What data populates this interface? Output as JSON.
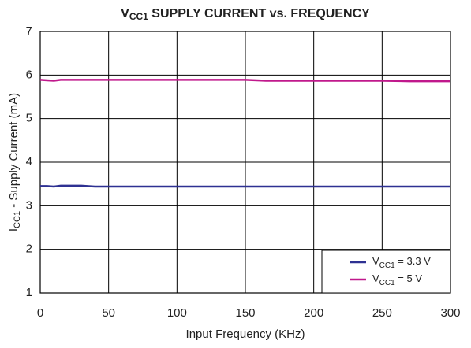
{
  "chart_data": {
    "type": "line",
    "title": [
      "V",
      "CC1",
      " SUPPLY CURRENT vs. FREQUENCY"
    ],
    "xlabel": "Input Frequency (KHz)",
    "ylabel": [
      "I",
      "CC1",
      " - Supply Current (mA)"
    ],
    "x": [
      0,
      5,
      10,
      15,
      30,
      40,
      100,
      150,
      165,
      200,
      250,
      270,
      300
    ],
    "series": [
      {
        "name": [
          "V",
          "CC1",
          " = 3.3 V"
        ],
        "color": "#2e3192",
        "values": [
          3.45,
          3.45,
          3.44,
          3.46,
          3.46,
          3.44,
          3.44,
          3.44,
          3.44,
          3.44,
          3.44,
          3.44,
          3.44
        ]
      },
      {
        "name": [
          "V",
          "CC1",
          " = 5 V"
        ],
        "color": "#c0198c",
        "values": [
          5.89,
          5.88,
          5.87,
          5.89,
          5.89,
          5.89,
          5.89,
          5.89,
          5.87,
          5.87,
          5.87,
          5.86,
          5.86
        ]
      }
    ],
    "xlim": [
      0,
      300
    ],
    "xticks": [
      0,
      50,
      100,
      150,
      200,
      250,
      300
    ],
    "ylim": [
      1,
      7
    ],
    "yticks": [
      1,
      2,
      3,
      4,
      5,
      6,
      7
    ],
    "grid": true,
    "legend": "lower right"
  }
}
